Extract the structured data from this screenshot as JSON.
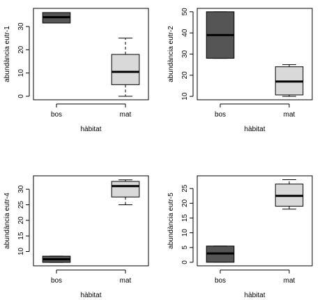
{
  "colors": {
    "bos": "#555555",
    "mat": "#d9d9d9",
    "axis": "#000000"
  },
  "chart_data": [
    {
      "type": "box",
      "xlabel": "hàbitat",
      "ylabel": "abundància eutr-1",
      "categories": [
        "bos",
        "mat"
      ],
      "yticks": [
        0,
        10,
        20,
        30
      ],
      "ylim": [
        -1.5,
        37.8
      ],
      "boxes": [
        {
          "min": 31.5,
          "q1": 31.5,
          "median": 34,
          "q3": 36,
          "max": 36
        },
        {
          "min": 0,
          "q1": 5,
          "median": 10.5,
          "q3": 18,
          "max": 25
        }
      ]
    },
    {
      "type": "box",
      "xlabel": "hàbitat",
      "ylabel": "abundància eutr-2",
      "categories": [
        "bos",
        "mat"
      ],
      "yticks": [
        10,
        20,
        30,
        40,
        50
      ],
      "ylim": [
        8.4,
        51.6
      ],
      "boxes": [
        {
          "min": 28,
          "q1": 28,
          "median": 39,
          "q3": 50,
          "max": 50
        },
        {
          "min": 10,
          "q1": 10.7,
          "median": 17,
          "q3": 24,
          "max": 25
        }
      ]
    },
    {
      "type": "box",
      "xlabel": "hàbitat",
      "ylabel": "abundància eutr-4",
      "categories": [
        "bos",
        "mat"
      ],
      "yticks": [
        10,
        15,
        20,
        25,
        30
      ],
      "ylim": [
        5.4,
        34.3
      ],
      "boxes": [
        {
          "min": 6.5,
          "q1": 6.5,
          "median": 7.5,
          "q3": 8.5,
          "max": 8.5
        },
        {
          "min": 25,
          "q1": 27.5,
          "median": 31,
          "q3": 32.5,
          "max": 33
        }
      ]
    },
    {
      "type": "box",
      "xlabel": "hàbitat",
      "ylabel": "abundància eutr-5",
      "categories": [
        "bos",
        "mat"
      ],
      "yticks": [
        0,
        5,
        10,
        15,
        20,
        25
      ],
      "ylim": [
        -1.2,
        29.3
      ],
      "boxes": [
        {
          "min": 0,
          "q1": 0,
          "median": 3,
          "q3": 5.5,
          "max": 5.5
        },
        {
          "min": 18,
          "q1": 19,
          "median": 22.5,
          "q3": 26.5,
          "max": 28
        }
      ]
    }
  ]
}
